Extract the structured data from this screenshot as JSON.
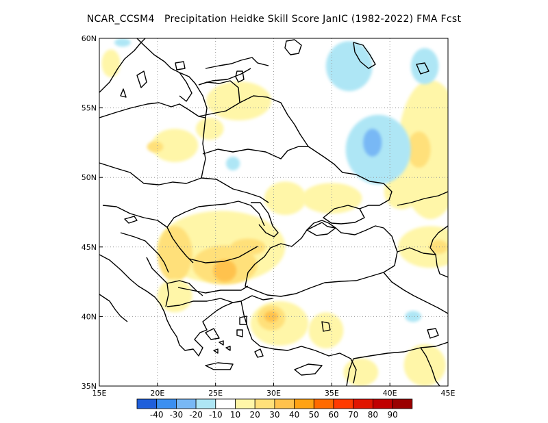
{
  "title": "NCAR_CCSM4   Precipitation Heidke Skill Score JanIC (1982-2022) FMA Fcst",
  "map": {
    "lon_range": [
      15,
      45
    ],
    "lat_range": [
      35,
      60
    ],
    "lon_ticks": [
      {
        "value": 15,
        "label": "15E"
      },
      {
        "value": 20,
        "label": "20E"
      },
      {
        "value": 25,
        "label": "25E"
      },
      {
        "value": 30,
        "label": "30E"
      },
      {
        "value": 35,
        "label": "35E"
      },
      {
        "value": 40,
        "label": "40E"
      },
      {
        "value": 45,
        "label": "45E"
      }
    ],
    "lat_ticks": [
      {
        "value": 35,
        "label": "35N"
      },
      {
        "value": 40,
        "label": "40N"
      },
      {
        "value": 45,
        "label": "45N"
      },
      {
        "value": 50,
        "label": "50N"
      },
      {
        "value": 55,
        "label": "55N"
      },
      {
        "value": 60,
        "label": "60N"
      }
    ],
    "grid": "dotted"
  },
  "colorbar": {
    "colors": [
      "#1f5fdb",
      "#3b8ff0",
      "#78b8f5",
      "#aee6f5",
      "#ffffff",
      "#fff6a8",
      "#ffe07a",
      "#ffc24d",
      "#ffa214",
      "#ff6a00",
      "#ff3a00",
      "#e01500",
      "#c00000",
      "#9a0000"
    ],
    "labels": [
      "-40",
      "-30",
      "-20",
      "-10",
      "10",
      "20",
      "30",
      "40",
      "50",
      "60",
      "70",
      "80",
      "90"
    ]
  },
  "chart_data": {
    "type": "heatmap",
    "title": "NCAR_CCSM4   Precipitation Heidke Skill Score JanIC (1982-2022) FMA Fcst",
    "xlim": [
      15,
      45
    ],
    "ylim": [
      35,
      60
    ],
    "levels": [
      -40,
      -30,
      -20,
      -10,
      10,
      20,
      30,
      40,
      50,
      60,
      70,
      80,
      90
    ],
    "regions": [
      {
        "level": 10,
        "lon": 16.0,
        "lat": 58.2,
        "rx": 0.8,
        "ry": 1.0
      },
      {
        "level": 10,
        "lon": 27.0,
        "lat": 55.5,
        "rx": 2.8,
        "ry": 1.4
      },
      {
        "level": 10,
        "lon": 21.5,
        "lat": 52.3,
        "rx": 2.0,
        "ry": 1.2
      },
      {
        "level": 20,
        "lon": 19.8,
        "lat": 52.2,
        "rx": 0.7,
        "ry": 0.4
      },
      {
        "level": 10,
        "lon": 24.5,
        "lat": 53.5,
        "rx": 1.2,
        "ry": 0.8
      },
      {
        "level": 10,
        "lon": 31.0,
        "lat": 48.5,
        "rx": 1.8,
        "ry": 1.2
      },
      {
        "level": 10,
        "lon": 35.0,
        "lat": 48.5,
        "rx": 2.6,
        "ry": 1.1
      },
      {
        "level": 10,
        "lon": 25.5,
        "lat": 45.0,
        "rx": 5.5,
        "ry": 2.6
      },
      {
        "level": 20,
        "lon": 21.5,
        "lat": 44.5,
        "rx": 1.5,
        "ry": 2.0
      },
      {
        "level": 20,
        "lon": 25.8,
        "lat": 43.7,
        "rx": 2.8,
        "ry": 1.4
      },
      {
        "level": 30,
        "lon": 25.8,
        "lat": 43.3,
        "rx": 1.0,
        "ry": 0.8
      },
      {
        "level": 20,
        "lon": 27.8,
        "lat": 45.0,
        "rx": 1.5,
        "ry": 0.6
      },
      {
        "level": 10,
        "lon": 21.5,
        "lat": 41.5,
        "rx": 1.5,
        "ry": 1.2
      },
      {
        "level": 10,
        "lon": 30.5,
        "lat": 39.5,
        "rx": 2.5,
        "ry": 1.6
      },
      {
        "level": 20,
        "lon": 29.8,
        "lat": 39.9,
        "rx": 1.2,
        "ry": 0.9
      },
      {
        "level": 30,
        "lon": 29.8,
        "lat": 40.0,
        "rx": 0.6,
        "ry": 0.4
      },
      {
        "level": 10,
        "lon": 34.5,
        "lat": 39.0,
        "rx": 1.5,
        "ry": 1.3
      },
      {
        "level": 10,
        "lon": 37.5,
        "lat": 36.0,
        "rx": 1.5,
        "ry": 1.0
      },
      {
        "level": 10,
        "lon": 43.0,
        "lat": 36.5,
        "rx": 1.8,
        "ry": 1.5
      },
      {
        "level": 10,
        "lon": 43.5,
        "lat": 45.0,
        "rx": 2.8,
        "ry": 1.5
      },
      {
        "level": 20,
        "lon": 44.2,
        "lat": 45.0,
        "rx": 0.8,
        "ry": 0.5
      },
      {
        "level": 10,
        "lon": 43.5,
        "lat": 52.0,
        "rx": 2.8,
        "ry": 5.0
      },
      {
        "level": 20,
        "lon": 42.5,
        "lat": 52.0,
        "rx": 1.0,
        "ry": 1.3
      },
      {
        "level": 10,
        "lon": 41.0,
        "lat": 49.0,
        "rx": 1.5,
        "ry": 1.3
      },
      {
        "level": -10,
        "lon": 36.5,
        "lat": 58.0,
        "rx": 2.0,
        "ry": 1.8
      },
      {
        "level": -10,
        "lon": 39.0,
        "lat": 52.0,
        "rx": 2.8,
        "ry": 2.5
      },
      {
        "level": -20,
        "lon": 38.5,
        "lat": 52.5,
        "rx": 0.8,
        "ry": 1.0
      },
      {
        "level": -10,
        "lon": 43.0,
        "lat": 58.0,
        "rx": 1.2,
        "ry": 1.3
      },
      {
        "level": -10,
        "lon": 26.5,
        "lat": 51.0,
        "rx": 0.6,
        "ry": 0.5
      },
      {
        "level": -10,
        "lon": 42.0,
        "lat": 40.0,
        "rx": 0.7,
        "ry": 0.4
      },
      {
        "level": -10,
        "lon": 17.0,
        "lat": 59.7,
        "rx": 0.7,
        "ry": 0.3
      }
    ]
  }
}
